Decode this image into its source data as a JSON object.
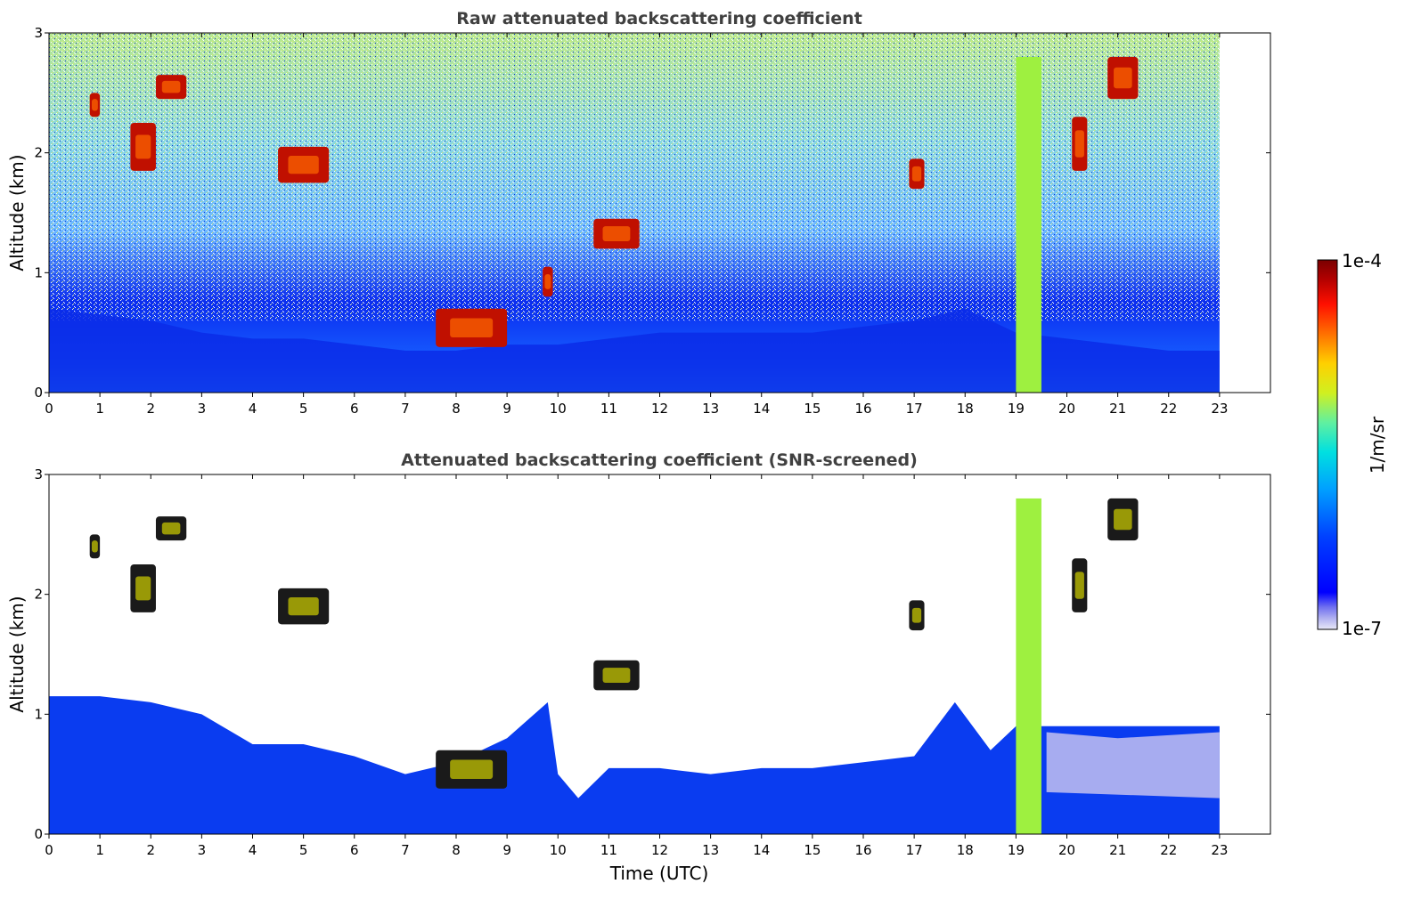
{
  "colorbar": {
    "max_label": "1e-4",
    "min_label": "1e-7",
    "unit_label": "1/m/sr",
    "colors": [
      "#e8e8f8",
      "#b0b0f0",
      "#7070f0",
      "#0000ff",
      "#0020ff",
      "#0060ff",
      "#00a0ff",
      "#00d8f0",
      "#40f0c0",
      "#a0f060",
      "#f0f000",
      "#ffb000",
      "#ff6000",
      "#ff1000",
      "#b00000",
      "#7a0000"
    ]
  },
  "chart_data": [
    {
      "type": "heatmap",
      "title": "Raw attenuated backscattering coefficient",
      "xlabel": "",
      "ylabel": "Altitude (km)",
      "xlim": [
        0,
        24
      ],
      "ylim": [
        0,
        3
      ],
      "x_ticks": [
        0,
        1,
        2,
        3,
        4,
        5,
        6,
        7,
        8,
        9,
        10,
        11,
        12,
        13,
        14,
        15,
        16,
        17,
        18,
        19,
        20,
        21,
        22,
        23
      ],
      "y_ticks": [
        0,
        1,
        2,
        3
      ],
      "data_extent_x": [
        0,
        23
      ],
      "boundary_layer_top_km": [
        [
          0,
          0.7
        ],
        [
          1,
          0.65
        ],
        [
          2,
          0.6
        ],
        [
          3,
          0.5
        ],
        [
          4,
          0.45
        ],
        [
          5,
          0.45
        ],
        [
          6,
          0.4
        ],
        [
          7,
          0.35
        ],
        [
          8,
          0.35
        ],
        [
          9,
          0.4
        ],
        [
          10,
          0.4
        ],
        [
          11,
          0.45
        ],
        [
          12,
          0.5
        ],
        [
          13,
          0.5
        ],
        [
          14,
          0.5
        ],
        [
          15,
          0.5
        ],
        [
          16,
          0.55
        ],
        [
          17,
          0.6
        ],
        [
          18,
          0.7
        ],
        [
          19,
          0.5
        ],
        [
          20,
          0.45
        ],
        [
          21,
          0.4
        ],
        [
          22,
          0.35
        ],
        [
          23,
          0.35
        ]
      ],
      "clouds": [
        {
          "x": [
            1.6,
            2.1
          ],
          "y": [
            1.85,
            2.25
          ]
        },
        {
          "x": [
            2.1,
            2.7
          ],
          "y": [
            2.45,
            2.65
          ]
        },
        {
          "x": [
            0.8,
            1.0
          ],
          "y": [
            2.3,
            2.5
          ]
        },
        {
          "x": [
            4.5,
            5.5
          ],
          "y": [
            1.75,
            2.05
          ]
        },
        {
          "x": [
            7.6,
            9.0
          ],
          "y": [
            0.38,
            0.7
          ]
        },
        {
          "x": [
            9.7,
            9.9
          ],
          "y": [
            0.8,
            1.05
          ]
        },
        {
          "x": [
            10.7,
            11.6
          ],
          "y": [
            1.2,
            1.45
          ]
        },
        {
          "x": [
            16.9,
            17.2
          ],
          "y": [
            1.7,
            1.95
          ]
        },
        {
          "x": [
            20.1,
            20.4
          ],
          "y": [
            1.85,
            2.3
          ]
        },
        {
          "x": [
            20.8,
            21.4
          ],
          "y": [
            2.45,
            2.8
          ]
        }
      ],
      "plume": {
        "x": [
          19.0,
          19.5
        ],
        "y": [
          0,
          2.8
        ]
      }
    },
    {
      "type": "heatmap",
      "title": "Attenuated backscattering coefficient (SNR-screened)",
      "xlabel": "Time (UTC)",
      "ylabel": "Altitude (km)",
      "xlim": [
        0,
        24
      ],
      "ylim": [
        0,
        3
      ],
      "x_ticks": [
        0,
        1,
        2,
        3,
        4,
        5,
        6,
        7,
        8,
        9,
        10,
        11,
        12,
        13,
        14,
        15,
        16,
        17,
        18,
        19,
        20,
        21,
        22,
        23
      ],
      "y_ticks": [
        0,
        1,
        2,
        3
      ],
      "data_extent_x": [
        0,
        23
      ],
      "screened_top_km": [
        [
          0,
          1.15
        ],
        [
          1,
          1.15
        ],
        [
          2,
          1.1
        ],
        [
          3,
          1.0
        ],
        [
          4,
          0.75
        ],
        [
          5,
          0.75
        ],
        [
          6,
          0.65
        ],
        [
          7,
          0.5
        ],
        [
          8,
          0.6
        ],
        [
          9,
          0.8
        ],
        [
          9.8,
          1.1
        ],
        [
          10,
          0.5
        ],
        [
          10.4,
          0.3
        ],
        [
          11,
          0.55
        ],
        [
          12,
          0.55
        ],
        [
          13,
          0.5
        ],
        [
          14,
          0.55
        ],
        [
          15,
          0.55
        ],
        [
          16,
          0.6
        ],
        [
          17,
          0.65
        ],
        [
          17.8,
          1.1
        ],
        [
          18.5,
          0.7
        ],
        [
          19,
          0.9
        ],
        [
          20,
          0.9
        ],
        [
          21,
          0.9
        ],
        [
          22,
          0.9
        ],
        [
          23,
          0.9
        ]
      ],
      "clouds": [
        {
          "x": [
            1.6,
            2.1
          ],
          "y": [
            1.85,
            2.25
          ]
        },
        {
          "x": [
            2.1,
            2.7
          ],
          "y": [
            2.45,
            2.65
          ]
        },
        {
          "x": [
            0.8,
            1.0
          ],
          "y": [
            2.3,
            2.5
          ]
        },
        {
          "x": [
            4.5,
            5.5
          ],
          "y": [
            1.75,
            2.05
          ]
        },
        {
          "x": [
            7.6,
            9.0
          ],
          "y": [
            0.38,
            0.7
          ]
        },
        {
          "x": [
            10.7,
            11.6
          ],
          "y": [
            1.2,
            1.45
          ]
        },
        {
          "x": [
            16.9,
            17.2
          ],
          "y": [
            1.7,
            1.95
          ]
        },
        {
          "x": [
            20.1,
            20.4
          ],
          "y": [
            1.85,
            2.3
          ]
        },
        {
          "x": [
            20.8,
            21.4
          ],
          "y": [
            2.45,
            2.8
          ]
        }
      ],
      "plume": {
        "x": [
          19.0,
          19.5
        ],
        "y": [
          0,
          2.8
        ]
      }
    }
  ]
}
